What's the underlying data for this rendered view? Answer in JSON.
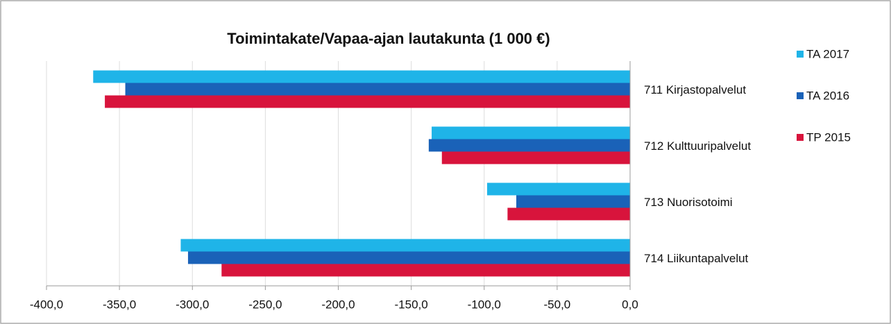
{
  "chart_data": {
    "type": "hbar",
    "title": "Toimintakate/Vapaa-ajan lautakunta (1 000 €)",
    "categories": [
      "711 Kirjastopalvelut",
      "712 Kulttuuripalvelut",
      "713 Nuorisotoimi",
      "714 Liikuntapalvelut"
    ],
    "series": [
      {
        "name": "TA 2017",
        "color": "#1fb4e8",
        "values": [
          -368,
          -136,
          -98,
          -308
        ]
      },
      {
        "name": "TA 2016",
        "color": "#1a62b8",
        "values": [
          -346,
          -138,
          -78,
          -303
        ]
      },
      {
        "name": "TP 2015",
        "color": "#d8143c",
        "values": [
          -360,
          -129,
          -84,
          -280
        ]
      }
    ],
    "xlim": [
      -400,
      0
    ],
    "xticks": [
      {
        "value": -400,
        "label": "-400,0"
      },
      {
        "value": -350,
        "label": "-350,0"
      },
      {
        "value": -300,
        "label": "-300,0"
      },
      {
        "value": -250,
        "label": "-250,0"
      },
      {
        "value": -200,
        "label": "-200,0"
      },
      {
        "value": -150,
        "label": "-150,0"
      },
      {
        "value": -100,
        "label": "-100,0"
      },
      {
        "value": -50,
        "label": "-50,0"
      },
      {
        "value": 0,
        "label": "0,0"
      }
    ],
    "grid": true,
    "legend": "right"
  }
}
